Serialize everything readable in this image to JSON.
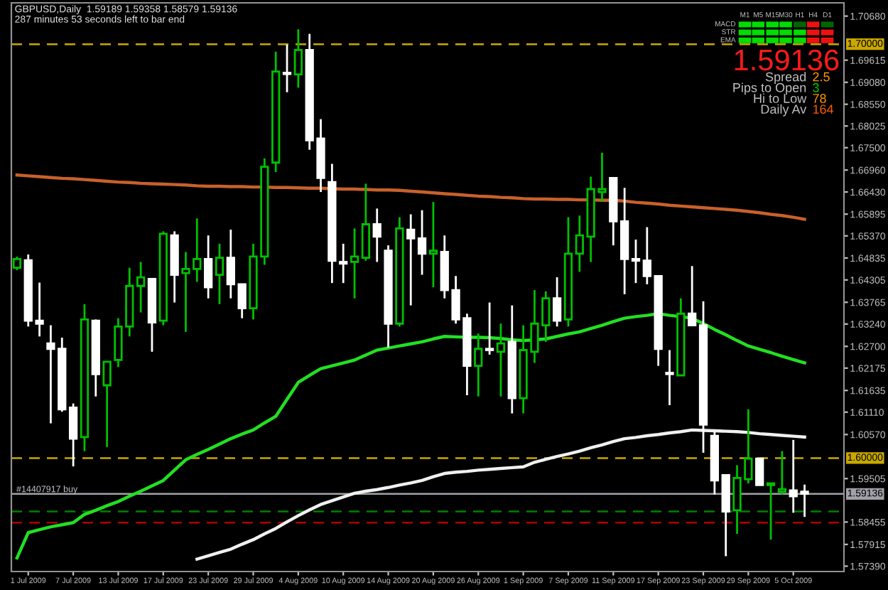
{
  "chart_data": {
    "type": "candlestick",
    "title": "GBPUSD,Daily  1.59189 1.59358 1.58579 1.59136",
    "subtitle": "287 minutes 53 seconds left to bar end",
    "categories": [
      null,
      "1 Jul 2009",
      null,
      null,
      null,
      "7 Jul 2009",
      null,
      null,
      null,
      "13 Jul 2009",
      null,
      null,
      null,
      "17 Jul 2009",
      null,
      null,
      null,
      "23 Jul 2009",
      null,
      null,
      null,
      "29 Jul 2009",
      null,
      null,
      null,
      "4 Aug 2009",
      null,
      null,
      null,
      "10 Aug 2009",
      null,
      null,
      null,
      "14 Aug 2009",
      null,
      null,
      null,
      "20 Aug 2009",
      null,
      null,
      null,
      "26 Aug 2009",
      null,
      null,
      null,
      "1 Sep 2009",
      null,
      null,
      null,
      "7 Sep 2009",
      null,
      null,
      null,
      "11 Sep 2009",
      null,
      null,
      null,
      "17 Sep 2009",
      null,
      null,
      null,
      "23 Sep 2009",
      null,
      null,
      null,
      "29 Sep 2009",
      null,
      null,
      null,
      "5 Oct 2009",
      null
    ],
    "ohlc": [
      [
        1.646,
        1.6487,
        1.6454,
        1.6481
      ],
      [
        1.6478,
        1.6492,
        1.6318,
        1.6332
      ],
      [
        1.6332,
        1.6424,
        1.6294,
        1.6325
      ],
      [
        1.6277,
        1.6321,
        1.6084,
        1.6264
      ],
      [
        1.6264,
        1.6291,
        1.6112,
        1.6118
      ],
      [
        1.6122,
        1.6132,
        1.598,
        1.6047
      ],
      [
        1.6051,
        1.6372,
        1.6017,
        1.6335
      ],
      [
        1.6332,
        1.6335,
        1.6149,
        1.6203
      ],
      [
        1.6176,
        1.6233,
        1.6027,
        1.6233
      ],
      [
        1.6237,
        1.6338,
        1.622,
        1.6318
      ],
      [
        1.6318,
        1.646,
        1.6294,
        1.6416
      ],
      [
        1.6416,
        1.6474,
        1.6352,
        1.6437
      ],
      [
        1.6433,
        1.6433,
        1.6257,
        1.6328
      ],
      [
        1.6332,
        1.6548,
        1.6321,
        1.6542
      ],
      [
        1.6538,
        1.6548,
        1.6376,
        1.6443
      ],
      [
        1.6447,
        1.6498,
        1.6305,
        1.6457
      ],
      [
        1.6457,
        1.6579,
        1.6426,
        1.6481
      ],
      [
        1.6481,
        1.6538,
        1.6386,
        1.6413
      ],
      [
        1.6443,
        1.6518,
        1.6372,
        1.6484
      ],
      [
        1.6484,
        1.6552,
        1.6386,
        1.642
      ],
      [
        1.642,
        1.642,
        1.6338,
        1.6362
      ],
      [
        1.6362,
        1.6518,
        1.6335,
        1.6487
      ],
      [
        1.6487,
        1.6724,
        1.6467,
        1.6704
      ],
      [
        1.6714,
        1.6982,
        1.6691,
        1.6934
      ],
      [
        1.6931,
        1.6999,
        1.6884,
        1.6928
      ],
      [
        1.6927,
        1.7036,
        1.6895,
        1.6986
      ],
      [
        1.6986,
        1.7025,
        1.6745,
        1.6768
      ],
      [
        1.6772,
        1.6819,
        1.6643,
        1.6677
      ],
      [
        1.6667,
        1.6711,
        1.6423,
        1.6477
      ],
      [
        1.6474,
        1.6518,
        1.6423,
        1.647
      ],
      [
        1.6474,
        1.6555,
        1.6386,
        1.6487
      ],
      [
        1.6484,
        1.6663,
        1.6477,
        1.6565
      ],
      [
        1.6565,
        1.6603,
        1.6474,
        1.6535
      ],
      [
        1.6501,
        1.6514,
        1.6267,
        1.6325
      ],
      [
        1.6325,
        1.6582,
        1.6318,
        1.6555
      ],
      [
        1.6552,
        1.6589,
        1.6369,
        1.6531
      ],
      [
        1.6531,
        1.6599,
        1.6443,
        1.6494
      ],
      [
        1.6494,
        1.6619,
        1.6413,
        1.6501
      ],
      [
        1.6498,
        1.6538,
        1.6386,
        1.6406
      ],
      [
        1.6406,
        1.644,
        1.6325,
        1.6335
      ],
      [
        1.6338,
        1.6349,
        1.6152,
        1.6223
      ],
      [
        1.6223,
        1.6301,
        1.6149,
        1.6264
      ],
      [
        1.6264,
        1.6376,
        1.625,
        1.6261
      ],
      [
        1.6257,
        1.6325,
        1.6149,
        1.6277
      ],
      [
        1.6281,
        1.6369,
        1.6108,
        1.6145
      ],
      [
        1.6145,
        1.6321,
        1.6108,
        1.6261
      ],
      [
        1.6257,
        1.6406,
        1.623,
        1.6325
      ],
      [
        1.6321,
        1.6403,
        1.6281,
        1.6386
      ],
      [
        1.6386,
        1.6437,
        1.6318,
        1.6332
      ],
      [
        1.6335,
        1.6582,
        1.6318,
        1.6494
      ],
      [
        1.6494,
        1.6586,
        1.645,
        1.6538
      ],
      [
        1.6535,
        1.668,
        1.6474,
        1.665
      ],
      [
        1.6643,
        1.6738,
        1.6619,
        1.665
      ],
      [
        1.6677,
        1.6677,
        1.6514,
        1.6572
      ],
      [
        1.6572,
        1.6653,
        1.6396,
        1.6481
      ],
      [
        1.6481,
        1.6528,
        1.6423,
        1.6477
      ],
      [
        1.6477,
        1.6558,
        1.642,
        1.644
      ],
      [
        1.644,
        1.644,
        1.6223,
        1.6264
      ],
      [
        1.6206,
        1.6261,
        1.6128,
        1.6203
      ],
      [
        1.62,
        1.6386,
        1.62,
        1.6349
      ],
      [
        1.6349,
        1.6464,
        1.6321,
        1.6321
      ],
      [
        1.6321,
        1.6379,
        1.6013,
        1.6081
      ],
      [
        1.6054,
        1.6064,
        1.5912,
        1.5946
      ],
      [
        1.5959,
        1.5959,
        1.5763,
        1.5871
      ],
      [
        1.5874,
        1.5983,
        1.5817,
        1.5952
      ],
      [
        1.5949,
        1.6118,
        1.5939,
        1.5999
      ],
      [
        1.5999,
        1.5999,
        1.5935,
        1.5935
      ],
      [
        1.5935,
        1.5939,
        1.5803,
        1.5939
      ],
      [
        1.5919,
        1.6017,
        1.5912,
        1.5925
      ],
      [
        1.5922,
        1.6044,
        1.5868,
        1.5908
      ],
      [
        1.5919,
        1.5936,
        1.5858,
        1.5914
      ]
    ],
    "colors": [
      "#00c000",
      "#ffffff",
      "#ffffff",
      "#ffffff",
      "#ffffff",
      "#ffffff",
      "#00c000",
      "#ffffff",
      "#00c000",
      "#00c000",
      "#00c000",
      "#00c000",
      "#ffffff",
      "#00c000",
      "#ffffff",
      "#00c000",
      "#00c000",
      "#ffffff",
      "#00c000",
      "#ffffff",
      "#ffffff",
      "#00c000",
      "#00c000",
      "#00c000",
      "#ffffff",
      "#00c000",
      "#ffffff",
      "#ffffff",
      "#ffffff",
      "#ffffff",
      "#00c000",
      "#00c000",
      "#ffffff",
      "#ffffff",
      "#00c000",
      "#ffffff",
      "#ffffff",
      "#00c000",
      "#ffffff",
      "#ffffff",
      "#ffffff",
      "#00c000",
      "#ffffff",
      "#00c000",
      "#ffffff",
      "#00c000",
      "#00c000",
      "#00c000",
      "#ffffff",
      "#00c000",
      "#00c000",
      "#00c000",
      "#00c000",
      "#ffffff",
      "#ffffff",
      "#ffffff",
      "#ffffff",
      "#ffffff",
      "#ffffff",
      "#00c000",
      "#ffffff",
      "#ffffff",
      "#ffffff",
      "#ffffff",
      "#00c000",
      "#00c000",
      "#ffffff",
      "#00c000",
      "#00c000",
      "#ffffff",
      "#ffffff"
    ],
    "series": [
      {
        "type": "line",
        "color": "#c8612a",
        "values": [
          1.6684,
          1.6682,
          1.668,
          1.6678,
          1.6676,
          1.6675,
          1.6673,
          1.6671,
          1.6669,
          1.6667,
          1.6666,
          1.6664,
          1.6663,
          1.6662,
          1.6661,
          1.666,
          1.6658,
          1.6657,
          1.6657,
          1.6656,
          1.6656,
          1.6655,
          1.6655,
          1.6654,
          1.6654,
          1.6653,
          1.6652,
          1.6652,
          1.6651,
          1.665,
          1.665,
          1.6649,
          1.6648,
          1.6648,
          1.6647,
          1.6645,
          1.6643,
          1.6641,
          1.6639,
          1.6637,
          1.6635,
          1.6633,
          1.6632,
          1.663,
          1.6629,
          1.6627,
          1.6626,
          1.6626,
          1.6625,
          1.6625,
          1.6624,
          1.6624,
          1.6623,
          1.6623,
          1.6621,
          1.6618,
          1.6616,
          1.6614,
          1.6611,
          1.6609,
          1.6607,
          1.6605,
          1.6603,
          1.6601,
          1.6599,
          1.6596,
          1.6593,
          1.6589,
          1.6586,
          1.6582,
          1.6577
        ]
      },
      {
        "type": "line",
        "color": "#22e022",
        "values": [
          1.5759,
          1.582,
          1.5827,
          1.5834,
          1.5839,
          1.5844,
          1.5864,
          1.5874,
          1.5885,
          1.5895,
          1.5908,
          1.592,
          1.5933,
          1.5946,
          1.5971,
          1.5996,
          1.6009,
          1.6021,
          1.6034,
          1.6047,
          1.6058,
          1.6068,
          1.6085,
          1.6101,
          1.6142,
          1.6183,
          1.62,
          1.6216,
          1.6223,
          1.623,
          1.6237,
          1.6249,
          1.6261,
          1.6266,
          1.6271,
          1.6276,
          1.6281,
          1.6288,
          1.6294,
          1.6293,
          1.6292,
          1.6292,
          1.6291,
          1.6289,
          1.6286,
          1.6284,
          1.6286,
          1.6288,
          1.6294,
          1.63,
          1.6305,
          1.6313,
          1.6321,
          1.633,
          1.6338,
          1.6342,
          1.6345,
          1.6349,
          1.6345,
          1.6342,
          1.6338,
          1.6325,
          1.6311,
          1.6298,
          1.6284,
          1.6271,
          1.6263,
          1.6255,
          1.6246,
          1.6238,
          1.623
        ]
      },
      {
        "type": "line",
        "color": "#f0f0f0",
        "values": [
          null,
          null,
          null,
          null,
          null,
          null,
          null,
          null,
          null,
          null,
          null,
          null,
          null,
          null,
          null,
          null,
          1.5756,
          1.5764,
          1.5772,
          1.578,
          1.5792,
          1.5803,
          1.5817,
          1.583,
          1.5846,
          1.5861,
          1.5875,
          1.5888,
          1.5897,
          1.5906,
          1.5915,
          1.592,
          1.5924,
          1.5929,
          1.5935,
          1.594,
          1.5946,
          1.5955,
          1.5963,
          1.5966,
          1.5968,
          1.5971,
          1.5973,
          1.5975,
          1.5977,
          1.5979,
          1.599,
          1.5997,
          1.6004,
          1.601,
          1.6017,
          1.6025,
          1.6032,
          1.604,
          1.6047,
          1.605,
          1.6054,
          1.6057,
          1.6061,
          1.6064,
          1.6068,
          1.6067,
          1.6066,
          1.6065,
          1.6064,
          1.6062,
          1.6059,
          1.6057,
          1.6055,
          1.6053,
          1.6051
        ]
      }
    ],
    "ylim": [
      1.5726,
      1.71
    ],
    "yticks": [
      {
        "value": 1.7068,
        "label": "1.70680"
      },
      {
        "value": 1.69615,
        "label": "1.69615"
      },
      {
        "value": 1.6908,
        "label": "1.69080"
      },
      {
        "value": 1.6855,
        "label": "1.68550"
      },
      {
        "value": 1.68025,
        "label": "1.68025"
      },
      {
        "value": 1.675,
        "label": "1.67500"
      },
      {
        "value": 1.6696,
        "label": "1.66960"
      },
      {
        "value": 1.6643,
        "label": "1.66430"
      },
      {
        "value": 1.65895,
        "label": "1.65895"
      },
      {
        "value": 1.6537,
        "label": "1.65370"
      },
      {
        "value": 1.64835,
        "label": "1.64835"
      },
      {
        "value": 1.64305,
        "label": "1.64305"
      },
      {
        "value": 1.63765,
        "label": "1.63765"
      },
      {
        "value": 1.6324,
        "label": "1.63240"
      },
      {
        "value": 1.627,
        "label": "1.62700"
      },
      {
        "value": 1.62175,
        "label": "1.62175"
      },
      {
        "value": 1.61635,
        "label": "1.61635"
      },
      {
        "value": 1.6111,
        "label": "1.61110"
      },
      {
        "value": 1.6057,
        "label": "1.60570"
      },
      {
        "value": 1.59505,
        "label": "1.59505"
      },
      {
        "value": 1.58455,
        "label": "1.58455"
      },
      {
        "value": 1.57915,
        "label": "1.57915"
      },
      {
        "value": 1.5739,
        "label": "1.57390"
      }
    ],
    "ref_lines": [
      {
        "axis": "y",
        "value": 1.7,
        "label": "1.70000",
        "color": "#c8a800",
        "line_style": "dashed"
      },
      {
        "axis": "y",
        "value": 1.6,
        "label": "1.60000",
        "color": "#c8a800",
        "line_style": "dashed"
      },
      {
        "axis": "y",
        "value": 1.59136,
        "label": "1.59136",
        "color": "#a0a0a8",
        "line_style": "solid"
      },
      {
        "axis": "y",
        "value": 1.5871,
        "color": "#008000",
        "line_style": "dashed"
      },
      {
        "axis": "y",
        "value": 1.5844,
        "color": "#b00000",
        "line_style": "dashed"
      }
    ],
    "annotations": [
      {
        "text": "#14407917 buy",
        "y": 1.59136
      },
      "M1",
      "M5",
      "M15",
      "M30",
      "H1",
      "H4",
      "D1",
      "MACD",
      "STR",
      "EMA",
      "1.59136",
      "Spread",
      "2.5",
      "Pips to Open",
      "3",
      "Hi to Low",
      "78",
      "Daily Av",
      "164"
    ],
    "grid": false,
    "legend": false
  }
}
